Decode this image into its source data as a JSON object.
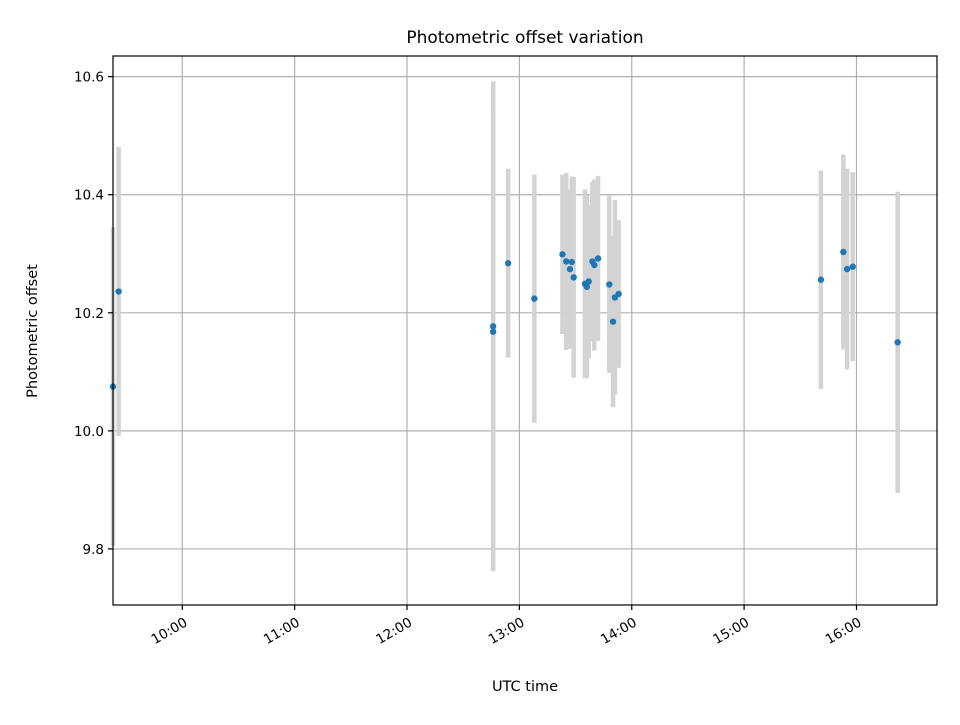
{
  "chart_data": {
    "type": "scatter",
    "title": "Photometric offset variation",
    "xlabel": "UTC time",
    "ylabel": "Photometric offset",
    "x_axis_type": "time",
    "xlim": [
      "09:23",
      "16:43"
    ],
    "ylim": [
      9.705,
      10.635
    ],
    "x_ticks": [
      "10:00",
      "11:00",
      "12:00",
      "13:00",
      "14:00",
      "15:00",
      "16:00"
    ],
    "y_ticks": [
      9.8,
      10.0,
      10.2,
      10.4,
      10.6
    ],
    "y_tick_labels": [
      "9.8",
      "10.0",
      "10.2",
      "10.4",
      "10.6"
    ],
    "grid": true,
    "legend": "none",
    "colors": {
      "point": "#1f77b4",
      "error_bar": "#d3d3d3",
      "grid": "#b0b0b0"
    },
    "series": [
      {
        "points": [
          {
            "time": "09:23",
            "y": 10.075,
            "err": 0.27
          },
          {
            "time": "09:26",
            "y": 10.236,
            "err": 0.245
          },
          {
            "time": "12:46",
            "y": 10.177,
            "err": 0.415
          },
          {
            "time": "12:46",
            "y": 10.168,
            "err": 0.375
          },
          {
            "time": "12:54",
            "y": 10.284,
            "err": 0.16
          },
          {
            "time": "13:08",
            "y": 10.224,
            "err": 0.21
          },
          {
            "time": "13:23",
            "y": 10.299,
            "err": 0.135
          },
          {
            "time": "13:25",
            "y": 10.287,
            "err": 0.15
          },
          {
            "time": "13:27",
            "y": 10.274,
            "err": 0.135
          },
          {
            "time": "13:28",
            "y": 10.286,
            "err": 0.145
          },
          {
            "time": "13:29",
            "y": 10.26,
            "err": 0.17
          },
          {
            "time": "13:35",
            "y": 10.249,
            "err": 0.16
          },
          {
            "time": "13:36",
            "y": 10.244,
            "err": 0.155
          },
          {
            "time": "13:37",
            "y": 10.253,
            "err": 0.13
          },
          {
            "time": "13:39",
            "y": 10.287,
            "err": 0.135
          },
          {
            "time": "13:40",
            "y": 10.281,
            "err": 0.145
          },
          {
            "time": "13:42",
            "y": 10.292,
            "err": 0.14
          },
          {
            "time": "13:48",
            "y": 10.248,
            "err": 0.15
          },
          {
            "time": "13:50",
            "y": 10.185,
            "err": 0.145
          },
          {
            "time": "13:51",
            "y": 10.226,
            "err": 0.165
          },
          {
            "time": "13:53",
            "y": 10.232,
            "err": 0.125
          },
          {
            "time": "15:41",
            "y": 10.256,
            "err": 0.185
          },
          {
            "time": "15:53",
            "y": 10.303,
            "err": 0.165
          },
          {
            "time": "15:55",
            "y": 10.274,
            "err": 0.17
          },
          {
            "time": "15:58",
            "y": 10.278,
            "err": 0.16
          },
          {
            "time": "16:22",
            "y": 10.15,
            "err": 0.255
          }
        ]
      }
    ]
  }
}
